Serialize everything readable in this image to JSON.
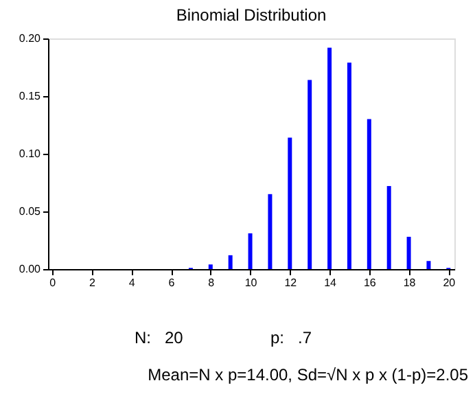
{
  "chart_data": {
    "type": "bar",
    "title": "Binomial Distribution",
    "x": [
      0,
      1,
      2,
      3,
      4,
      5,
      6,
      7,
      8,
      9,
      10,
      11,
      12,
      13,
      14,
      15,
      16,
      17,
      18,
      19,
      20
    ],
    "values": [
      0,
      0,
      0,
      0,
      0,
      0,
      0,
      0.001,
      0.004,
      0.012,
      0.031,
      0.065,
      0.114,
      0.164,
      0.192,
      0.179,
      0.13,
      0.072,
      0.028,
      0.007,
      0.001
    ],
    "color": "#0000ff",
    "xlim": [
      -0.2,
      20.3
    ],
    "xticks": [
      0,
      2,
      4,
      6,
      8,
      10,
      12,
      14,
      16,
      18,
      20
    ],
    "ylim": [
      0,
      0.2
    ],
    "yticks": [
      {
        "value": 0,
        "label": "0.00"
      },
      {
        "value": 0.05,
        "label": "0.05"
      },
      {
        "value": 0.1,
        "label": "0.10"
      },
      {
        "value": 0.15,
        "label": "0.15"
      },
      {
        "value": 0.2,
        "label": "0.20"
      }
    ],
    "grid": false,
    "annotations": [
      "N:",
      "20",
      "p:",
      ".7",
      "Mean=N x p=14.00,  Sd=√N x p x (1-p)=2.05"
    ]
  }
}
